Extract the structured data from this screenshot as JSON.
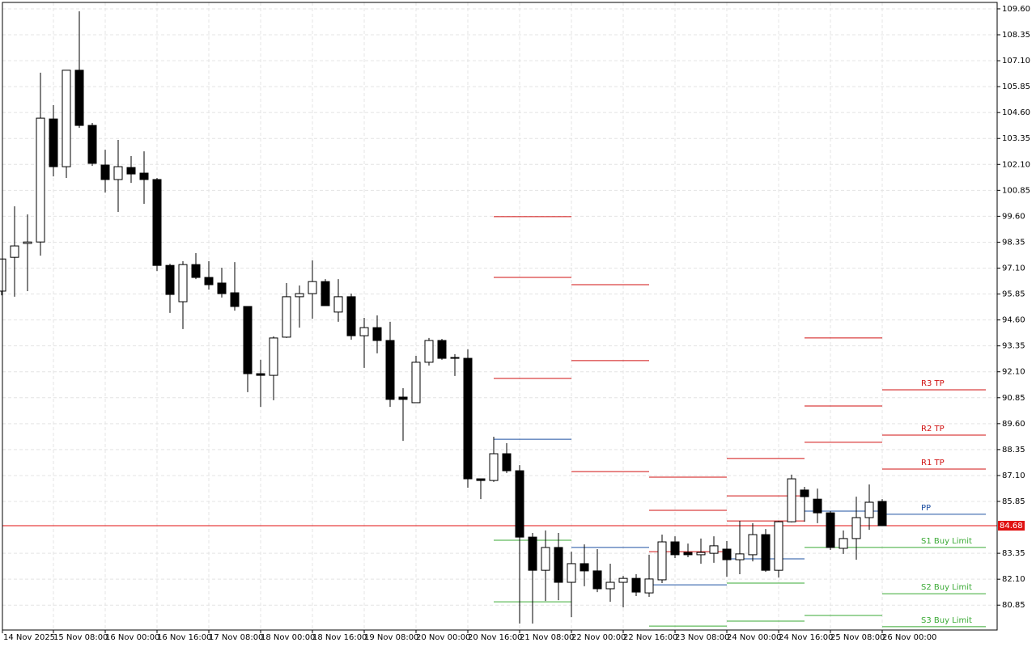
{
  "chart_data": {
    "type": "candlestick",
    "categories": [
      "14 Nov 2025",
      null,
      null,
      null,
      "15 Nov 08:00",
      null,
      null,
      null,
      "16 Nov 00:00",
      null,
      null,
      null,
      "16 Nov 16:00",
      null,
      null,
      null,
      "17 Nov 08:00",
      null,
      null,
      null,
      "18 Nov 00:00",
      null,
      null,
      null,
      "18 Nov 16:00",
      null,
      null,
      null,
      "19 Nov 08:00",
      null,
      null,
      null,
      "20 Nov 00:00",
      null,
      null,
      null,
      "20 Nov 16:00",
      null,
      null,
      null,
      "21 Nov 08:00",
      null,
      null,
      null,
      "22 Nov 00:00",
      null,
      null,
      null,
      "22 Nov 16:00",
      null,
      null,
      null,
      "23 Nov 08:00",
      null,
      null,
      null,
      "24 Nov 00:00",
      null,
      null,
      null,
      "24 Nov 16:00",
      null,
      null,
      null,
      "25 Nov 08:00",
      null,
      null,
      null,
      "26 Nov 00:00"
    ],
    "open": [
      95.99,
      97.62,
      98.29,
      98.36,
      104.29,
      101.99,
      106.64,
      103.98,
      102.07,
      101.37,
      101.95,
      101.68,
      101.37,
      97.23,
      95.48,
      97.27,
      96.65,
      96.38,
      95.91,
      95.25,
      92.01,
      91.93,
      93.77,
      95.72,
      95.87,
      96.45,
      94.98,
      95.72,
      93.84,
      94.23,
      93.61,
      90.88,
      90.61,
      92.56,
      93.61,
      92.79,
      92.75,
      86.94,
      86.86,
      88.15,
      87.33,
      84.13,
      82.53,
      83.63,
      81.95,
      82.85,
      82.5,
      81.64,
      81.95,
      82.14,
      81.44,
      82.07,
      83.9,
      83.39,
      83.28,
      83.35,
      83.55,
      83.04,
      83.28,
      84.25,
      82.53,
      84.87,
      86.4,
      85.96,
      85.3,
      83.59,
      84.06,
      85.07,
      85.85
    ],
    "high": [
      97.54,
      100.08,
      99.69,
      106.52,
      104.96,
      106.64,
      109.48,
      104.1,
      102.81,
      103.28,
      102.5,
      102.73,
      101.45,
      97.31,
      97.43,
      97.82,
      97.43,
      97.12,
      97.39,
      95.25,
      92.68,
      93.81,
      96.38,
      96.26,
      97.47,
      96.57,
      96.57,
      95.87,
      94.7,
      94.82,
      94.51,
      91.31,
      92.87,
      93.73,
      93.69,
      92.95,
      93.18,
      86.94,
      88.97,
      88.66,
      87.6,
      84.33,
      84.45,
      84.33,
      83.43,
      83.78,
      83.55,
      82.85,
      82.26,
      82.34,
      83.28,
      84.25,
      84.17,
      83.82,
      84.06,
      84.17,
      83.94,
      84.91,
      84.8,
      84.52,
      84.91,
      87.14,
      86.55,
      86.47,
      85.38,
      84.45,
      86.08,
      86.67,
      85.96
    ],
    "low": [
      95.79,
      95.72,
      95.99,
      97.7,
      101.52,
      101.45,
      103.86,
      102.03,
      100.74,
      99.81,
      101.21,
      100.2,
      96.96,
      94.94,
      94.16,
      96.57,
      96.06,
      95.68,
      95.05,
      91.12,
      90.41,
      90.73,
      93.73,
      94.23,
      94.66,
      95.29,
      94.51,
      93.65,
      92.29,
      92.99,
      90.41,
      88.77,
      90.61,
      92.4,
      92.68,
      91.9,
      86.51,
      85.96,
      86.79,
      87.22,
      79.96,
      79.96,
      81.05,
      81.09,
      80.27,
      81.76,
      81.48,
      81.01,
      80.74,
      81.29,
      81.25,
      81.91,
      83.12,
      83.16,
      82.85,
      82.89,
      82.22,
      82.34,
      82.96,
      82.46,
      82.18,
      84.84,
      84.87,
      84.8,
      83.51,
      83.32,
      83.04,
      84.48,
      84.68
    ],
    "close": [
      97.54,
      98.17,
      98.36,
      104.33,
      101.99,
      106.64,
      103.98,
      102.15,
      101.37,
      101.99,
      101.64,
      101.37,
      97.23,
      95.83,
      97.27,
      96.65,
      96.3,
      95.87,
      95.25,
      92.01,
      91.93,
      93.73,
      95.72,
      95.87,
      96.45,
      95.29,
      95.72,
      93.84,
      94.23,
      93.61,
      90.77,
      90.77,
      92.56,
      93.61,
      92.75,
      92.75,
      86.94,
      86.86,
      88.15,
      87.33,
      84.13,
      82.53,
      83.63,
      81.95,
      82.85,
      82.5,
      81.64,
      81.95,
      82.14,
      81.48,
      82.11,
      83.9,
      83.28,
      83.28,
      83.39,
      83.71,
      83.04,
      83.32,
      84.25,
      82.53,
      84.87,
      86.94,
      86.08,
      85.3,
      83.63,
      84.06,
      85.07,
      85.81,
      84.68
    ],
    "up_color": "#ffffff",
    "down_color": "#000000",
    "levels": [
      {
        "name": "R3 TP",
        "color": "#d01010",
        "values": [
          null,
          null,
          null,
          null,
          null,
          null,
          null,
          null,
          null,
          null,
          null,
          null,
          null,
          null,
          null,
          null,
          null,
          null,
          null,
          null,
          null,
          null,
          null,
          null,
          null,
          null,
          null,
          null,
          null,
          null,
          null,
          null,
          null,
          null,
          null,
          null,
          null,
          null,
          99.58,
          null,
          null,
          null,
          null,
          null,
          96.3,
          null,
          null,
          null,
          null,
          null,
          87.02,
          null,
          null,
          null,
          null,
          null,
          87.92,
          null,
          null,
          null,
          null,
          null,
          93.73,
          null,
          null,
          null,
          null,
          null,
          91.23
        ]
      },
      {
        "name": "R2 TP",
        "color": "#d01010",
        "values": [
          null,
          null,
          null,
          null,
          null,
          null,
          null,
          null,
          null,
          null,
          null,
          null,
          null,
          null,
          null,
          null,
          null,
          null,
          null,
          null,
          null,
          null,
          null,
          null,
          null,
          null,
          null,
          null,
          null,
          null,
          null,
          null,
          null,
          null,
          null,
          null,
          null,
          null,
          96.65,
          null,
          null,
          null,
          null,
          null,
          92.64,
          null,
          null,
          null,
          null,
          null,
          85.42,
          null,
          null,
          null,
          null,
          null,
          86.12,
          null,
          null,
          null,
          null,
          null,
          90.45,
          null,
          null,
          null,
          null,
          null,
          89.05
        ]
      },
      {
        "name": "R1 TP",
        "color": "#d01010",
        "values": [
          null,
          null,
          null,
          null,
          null,
          null,
          null,
          null,
          null,
          null,
          null,
          null,
          null,
          null,
          null,
          null,
          null,
          null,
          null,
          null,
          null,
          null,
          null,
          null,
          null,
          null,
          null,
          null,
          null,
          null,
          null,
          null,
          null,
          null,
          null,
          null,
          null,
          null,
          91.78,
          null,
          null,
          null,
          null,
          null,
          87.29,
          null,
          null,
          null,
          null,
          null,
          83.43,
          null,
          null,
          null,
          null,
          null,
          84.91,
          null,
          null,
          null,
          null,
          null,
          88.7,
          null,
          null,
          null,
          null,
          null,
          87.41
        ]
      },
      {
        "name": "PP",
        "color": "#1e50a2",
        "values": [
          null,
          null,
          null,
          null,
          null,
          null,
          null,
          null,
          null,
          null,
          null,
          null,
          null,
          null,
          null,
          null,
          null,
          null,
          null,
          null,
          null,
          null,
          null,
          null,
          null,
          null,
          null,
          null,
          null,
          null,
          null,
          null,
          null,
          null,
          null,
          null,
          null,
          null,
          88.85,
          null,
          null,
          null,
          null,
          null,
          83.63,
          null,
          null,
          null,
          null,
          null,
          81.83,
          null,
          null,
          null,
          null,
          null,
          83.08,
          null,
          null,
          null,
          null,
          null,
          85.38,
          null,
          null,
          null,
          null,
          null,
          85.23
        ]
      },
      {
        "name": "S1 Buy Limit",
        "color": "#3aaa35",
        "values": [
          null,
          null,
          null,
          null,
          null,
          null,
          null,
          null,
          null,
          null,
          null,
          null,
          null,
          null,
          null,
          null,
          null,
          null,
          null,
          null,
          null,
          null,
          null,
          null,
          null,
          null,
          null,
          null,
          null,
          null,
          null,
          null,
          null,
          null,
          null,
          null,
          null,
          null,
          83.98,
          null,
          null,
          null,
          null,
          null,
          null,
          null,
          null,
          null,
          null,
          null,
          79.84,
          null,
          null,
          null,
          null,
          null,
          81.91,
          null,
          null,
          null,
          null,
          null,
          83.63,
          null,
          null,
          null,
          null,
          null,
          83.63
        ]
      },
      {
        "name": "S2 Buy Limit",
        "color": "#3aaa35",
        "values": [
          null,
          null,
          null,
          null,
          null,
          null,
          null,
          null,
          null,
          null,
          null,
          null,
          null,
          null,
          null,
          null,
          null,
          null,
          null,
          null,
          null,
          null,
          null,
          null,
          null,
          null,
          null,
          null,
          null,
          null,
          null,
          null,
          null,
          null,
          null,
          null,
          null,
          null,
          81.01,
          null,
          null,
          null,
          null,
          null,
          null,
          null,
          null,
          null,
          null,
          null,
          null,
          null,
          null,
          null,
          null,
          null,
          80.08,
          null,
          null,
          null,
          null,
          null,
          80.35,
          null,
          null,
          null,
          null,
          null,
          81.4
        ]
      },
      {
        "name": "S3 Buy Limit",
        "color": "#3aaa35",
        "values": [
          null,
          null,
          null,
          null,
          null,
          null,
          null,
          null,
          null,
          null,
          null,
          null,
          null,
          null,
          null,
          null,
          null,
          null,
          null,
          null,
          null,
          null,
          null,
          null,
          null,
          null,
          null,
          null,
          null,
          null,
          null,
          null,
          null,
          null,
          null,
          null,
          null,
          null,
          null,
          null,
          null,
          null,
          null,
          null,
          null,
          null,
          null,
          null,
          null,
          null,
          null,
          null,
          null,
          null,
          null,
          null,
          null,
          null,
          null,
          null,
          null,
          null,
          null,
          null,
          null,
          null,
          null,
          null,
          79.81
        ]
      }
    ],
    "current_price": 84.68,
    "current_price_color": "#e01010",
    "ylim": [
      79.65,
      109.91
    ],
    "yticks": [
      {
        "value": 109.6,
        "label": "109.60"
      },
      {
        "value": 108.35,
        "label": "108.35"
      },
      {
        "value": 107.1,
        "label": "107.10"
      },
      {
        "value": 105.85,
        "label": "105.85"
      },
      {
        "value": 104.6,
        "label": "104.60"
      },
      {
        "value": 103.35,
        "label": "103.35"
      },
      {
        "value": 102.1,
        "label": "102.10"
      },
      {
        "value": 100.85,
        "label": "100.85"
      },
      {
        "value": 99.6,
        "label": "99.60"
      },
      {
        "value": 98.35,
        "label": "98.35"
      },
      {
        "value": 97.1,
        "label": "97.10"
      },
      {
        "value": 95.85,
        "label": "95.85"
      },
      {
        "value": 94.6,
        "label": "94.60"
      },
      {
        "value": 93.35,
        "label": "93.35"
      },
      {
        "value": 92.1,
        "label": "92.10"
      },
      {
        "value": 90.85,
        "label": "90.85"
      },
      {
        "value": 89.6,
        "label": "89.60"
      },
      {
        "value": 88.35,
        "label": "88.35"
      },
      {
        "value": 87.1,
        "label": "87.10"
      },
      {
        "value": 85.85,
        "label": "85.85"
      },
      {
        "value": 83.35,
        "label": "83.35"
      },
      {
        "value": 82.1,
        "label": "82.10"
      },
      {
        "value": 80.85,
        "label": "80.85"
      }
    ],
    "grid": true
  }
}
